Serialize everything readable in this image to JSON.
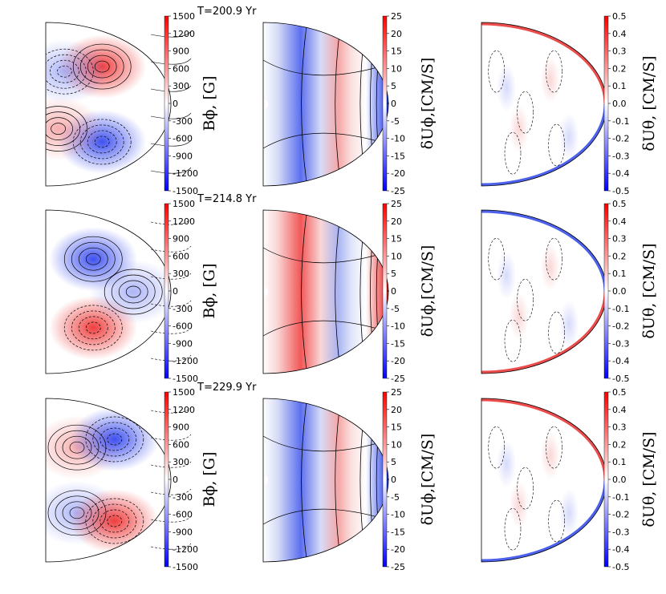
{
  "chart_data": {
    "type": "heatmap",
    "description_rows": [
      "200.9",
      "214.8",
      "229.9"
    ],
    "time_labels": [
      "T=200.9 Yr",
      "T=214.8 Yr",
      "T=229.9 Yr"
    ],
    "columns": [
      {
        "id": "bphi",
        "colorbar_label": "Bϕ, [G]",
        "range": [
          -1500,
          1500
        ],
        "ticks": [
          "1500",
          "1200",
          "900",
          "600",
          "300",
          "0",
          "-300",
          "-600",
          "-900",
          "-1200",
          "-1500"
        ]
      },
      {
        "id": "duphi",
        "colorbar_label": "δUϕ,[CM/S]",
        "range": [
          -25,
          25
        ],
        "ticks": [
          "25",
          "20",
          "15",
          "10",
          "5",
          "0",
          "-5",
          "-10",
          "-15",
          "-20",
          "-25"
        ]
      },
      {
        "id": "dutheta",
        "colorbar_label": "δUθ, [CM/S]",
        "range": [
          -0.5,
          0.5
        ],
        "ticks": [
          "0.5",
          "0.4",
          "0.3",
          "0.2",
          "0.1",
          "0.0",
          "-0.1",
          "-0.2",
          "-0.3",
          "-0.4",
          "-0.5"
        ]
      }
    ],
    "colors": {
      "positive": "#ff0000",
      "zero": "#ffffff",
      "negative": "#0000ff"
    }
  }
}
